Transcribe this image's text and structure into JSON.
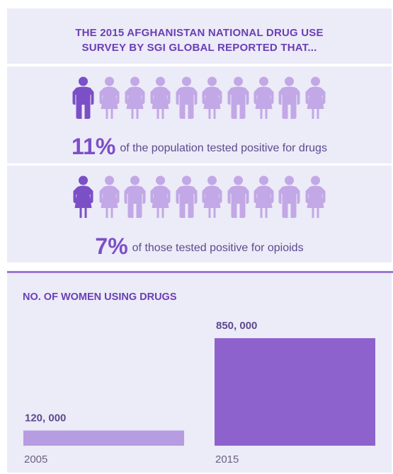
{
  "headline": {
    "line1": "THE 2015 AFGHANISTAN NATIONAL DRUG USE",
    "line2": "SURVEY BY SGI GLOBAL REPORTED THAT..."
  },
  "stats": [
    {
      "value": "11%",
      "text": "of the population tested positive for drugs",
      "highlighted_count": 1,
      "total_count": 10,
      "highlighted_figure": "man-icon",
      "figures": [
        "man-icon",
        "woman-icon",
        "woman-icon",
        "woman-icon",
        "man-icon",
        "woman-icon",
        "man-icon",
        "woman-icon",
        "man-icon",
        "woman-icon"
      ]
    },
    {
      "value": "7%",
      "text": "of those tested positive for opioids",
      "highlighted_count": 1,
      "total_count": 10,
      "highlighted_figure": "woman-icon",
      "figures": [
        "woman-icon",
        "woman-icon",
        "man-icon",
        "woman-icon",
        "man-icon",
        "woman-icon",
        "man-icon",
        "woman-icon",
        "man-icon",
        "woman-icon"
      ]
    }
  ],
  "colors": {
    "highlight": "#7b4fc6",
    "figure": "#c2a8e6",
    "panel": "#ecebf8",
    "text": "#5e4a8e",
    "bar_2005": "#b69ce0",
    "bar_2015": "#8e62cc"
  },
  "chart_data": {
    "type": "bar",
    "title": "NO. OF WOMEN USING DRUGS",
    "categories": [
      "2005",
      "2015"
    ],
    "values": [
      120000,
      850000
    ],
    "value_labels": [
      "120, 000",
      "850, 000"
    ],
    "xlabel": "",
    "ylabel": "",
    "ylim": [
      0,
      850000
    ],
    "grid": false,
    "legend": "none"
  }
}
